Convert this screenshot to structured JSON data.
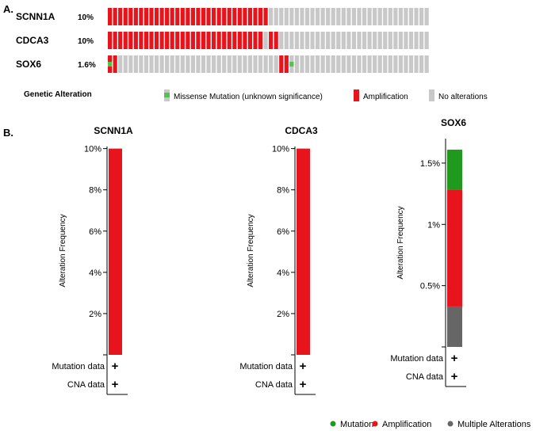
{
  "colors": {
    "amplification": "#e8141b",
    "mutation": "#1f9a1f",
    "mutation_oncoprint": "#4fc44f",
    "multiple": "#666666",
    "none": "#c8c8c8"
  },
  "panels": {
    "a_label": "A.",
    "b_label": "B."
  },
  "oncoprint": {
    "total_samples": 62,
    "genes": [
      {
        "name": "SCNN1A",
        "pct": "10%",
        "amplified_samples": 31,
        "mutated_samples": [],
        "amp_positions": []
      },
      {
        "name": "CDCA3",
        "pct": "10%",
        "amplified_samples": 30,
        "mutated_samples": [],
        "amp_positions": [
          31,
          32
        ]
      },
      {
        "name": "SOX6",
        "pct": "1.6%",
        "amplified_samples": 0,
        "mutated_samples": [
          0,
          35
        ],
        "amp_positions": [
          0,
          1,
          33,
          34
        ]
      }
    ],
    "legend": {
      "title": "Genetic Alteration",
      "missense": "Missense Mutation (unknown significance)",
      "amplification": "Amplification",
      "no_alterations": "No alterations"
    }
  },
  "chart_data": [
    {
      "type": "bar",
      "title": "SCNN1A",
      "ylabel": "Alteration Frequency",
      "ylim": [
        0,
        10.1
      ],
      "yticks": [
        {
          "v": 2,
          "label": "2%"
        },
        {
          "v": 4,
          "label": "4%"
        },
        {
          "v": 6,
          "label": "6%"
        },
        {
          "v": 8,
          "label": "8%"
        },
        {
          "v": 10,
          "label": "10%"
        }
      ],
      "segments": [
        {
          "type": "Amplification",
          "value": 10
        }
      ],
      "rows": [
        {
          "label": "Mutation data",
          "mark": "+"
        },
        {
          "label": "CNA data",
          "mark": "+"
        }
      ]
    },
    {
      "type": "bar",
      "title": "CDCA3",
      "ylabel": "Alteration Frequency",
      "ylim": [
        0,
        10.1
      ],
      "yticks": [
        {
          "v": 2,
          "label": "2%"
        },
        {
          "v": 4,
          "label": "4%"
        },
        {
          "v": 6,
          "label": "6%"
        },
        {
          "v": 8,
          "label": "8%"
        },
        {
          "v": 10,
          "label": "10%"
        }
      ],
      "segments": [
        {
          "type": "Amplification",
          "value": 10
        }
      ],
      "rows": [
        {
          "label": "Mutation data",
          "mark": "+"
        },
        {
          "label": "CNA data",
          "mark": "+"
        }
      ]
    },
    {
      "type": "bar",
      "title": "SOX6",
      "ylabel": "Alteration Frequency",
      "ylim": [
        0,
        1.7
      ],
      "yticks": [
        {
          "v": 0.5,
          "label": "0.5%"
        },
        {
          "v": 1,
          "label": "1%"
        },
        {
          "v": 1.5,
          "label": "1.5%"
        }
      ],
      "segments": [
        {
          "type": "Multiple Alterations",
          "value": 0.33
        },
        {
          "type": "Amplification",
          "value": 0.95
        },
        {
          "type": "Mutation",
          "value": 0.33
        }
      ],
      "rows": [
        {
          "label": "Mutation data",
          "mark": "+"
        },
        {
          "label": "CNA data",
          "mark": "+"
        }
      ]
    }
  ],
  "legend_b": [
    {
      "label": "Mutation",
      "color_key": "mutation"
    },
    {
      "label": "Amplification",
      "color_key": "amplification"
    },
    {
      "label": "Multiple Alterations",
      "color_key": "multiple"
    }
  ]
}
